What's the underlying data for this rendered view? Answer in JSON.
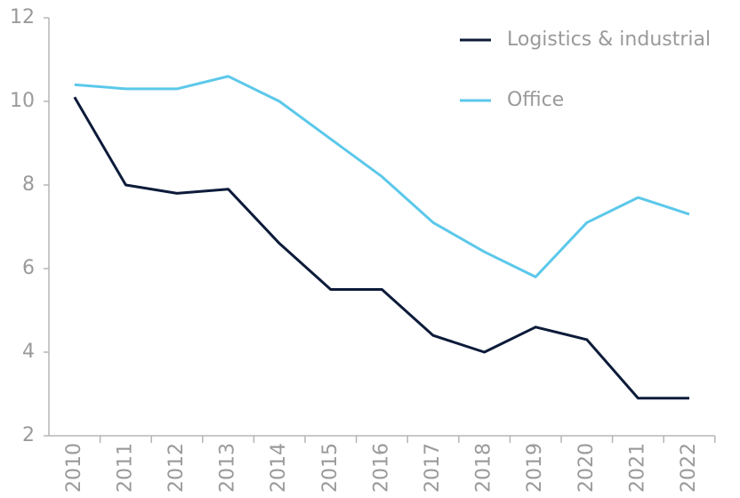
{
  "chart_data": {
    "type": "line",
    "categories": [
      "2010",
      "2011",
      "2012",
      "2013",
      "2014",
      "2015",
      "2016",
      "2017",
      "2018",
      "2019",
      "2020",
      "2021",
      "2022"
    ],
    "series": [
      {
        "name": "Logistics & industrial",
        "color": "#0d1b3a",
        "values": [
          10.1,
          8.0,
          7.8,
          7.9,
          6.6,
          5.5,
          5.5,
          4.4,
          4.0,
          4.6,
          4.3,
          2.9,
          2.9
        ]
      },
      {
        "name": "Office",
        "color": "#5bc8ea",
        "values": [
          10.4,
          10.3,
          10.3,
          10.6,
          10.0,
          9.1,
          8.2,
          7.1,
          6.4,
          5.8,
          7.1,
          7.7,
          7.3
        ]
      }
    ],
    "ylim": [
      2,
      12
    ],
    "yticks": [
      2,
      4,
      6,
      8,
      10,
      12
    ],
    "legend": "upper right"
  }
}
